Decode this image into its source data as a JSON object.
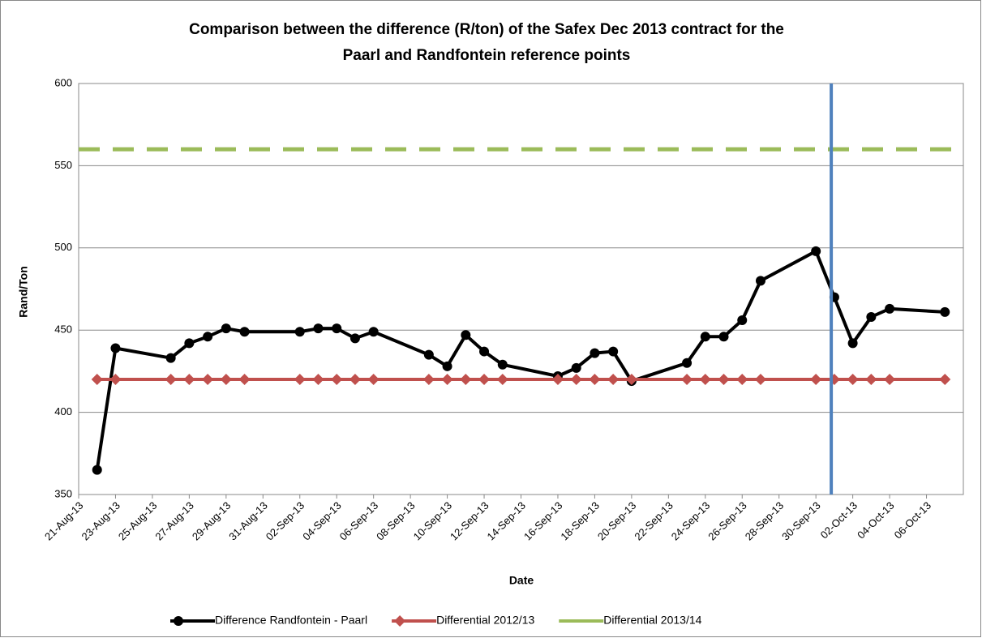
{
  "chart_data": {
    "type": "line",
    "title": [
      "Comparison  between the difference (R/ton) of the Safex Dec 2013 contract for the",
      "Paarl and Randfontein reference points"
    ],
    "xlabel": "Date",
    "ylabel": "Rand/Ton",
    "series": [
      {
        "name": "Difference Randfontein - Paarl",
        "color": "#000000",
        "marker": "circle",
        "x": [
          "2013-08-22",
          "2013-08-23",
          "2013-08-26",
          "2013-08-27",
          "2013-08-28",
          "2013-08-29",
          "2013-08-30",
          "2013-09-02",
          "2013-09-03",
          "2013-09-04",
          "2013-09-05",
          "2013-09-06",
          "2013-09-09",
          "2013-09-10",
          "2013-09-11",
          "2013-09-12",
          "2013-09-13",
          "2013-09-16",
          "2013-09-17",
          "2013-09-18",
          "2013-09-19",
          "2013-09-20",
          "2013-09-23",
          "2013-09-24",
          "2013-09-25",
          "2013-09-26",
          "2013-09-27",
          "2013-09-30",
          "2013-10-01",
          "2013-10-02",
          "2013-10-03",
          "2013-10-04",
          "2013-10-07"
        ],
        "values": [
          365,
          439,
          433,
          442,
          446,
          451,
          449,
          449,
          451,
          451,
          445,
          449,
          435,
          428,
          447,
          437,
          429,
          422,
          427,
          436,
          437,
          419,
          430,
          446,
          446,
          456,
          480,
          498,
          470,
          442,
          458,
          463,
          461
        ]
      },
      {
        "name": "Differential 2012/13",
        "color": "#c0504d",
        "marker": "diamond",
        "x": [
          "2013-08-22",
          "2013-08-23",
          "2013-08-26",
          "2013-08-27",
          "2013-08-28",
          "2013-08-29",
          "2013-08-30",
          "2013-09-02",
          "2013-09-03",
          "2013-09-04",
          "2013-09-05",
          "2013-09-06",
          "2013-09-09",
          "2013-09-10",
          "2013-09-11",
          "2013-09-12",
          "2013-09-13",
          "2013-09-16",
          "2013-09-17",
          "2013-09-18",
          "2013-09-19",
          "2013-09-20",
          "2013-09-23",
          "2013-09-24",
          "2013-09-25",
          "2013-09-26",
          "2013-09-27",
          "2013-09-30",
          "2013-10-01",
          "2013-10-02",
          "2013-10-03",
          "2013-10-04",
          "2013-10-07"
        ],
        "values": [
          420,
          420,
          420,
          420,
          420,
          420,
          420,
          420,
          420,
          420,
          420,
          420,
          420,
          420,
          420,
          420,
          420,
          420,
          420,
          420,
          420,
          420,
          420,
          420,
          420,
          420,
          420,
          420,
          420,
          420,
          420,
          420,
          420
        ]
      },
      {
        "name": "Differential 2013/14",
        "color": "#9bbb59",
        "dashed": true,
        "x": [
          "2013-08-21",
          "2013-10-08"
        ],
        "values": [
          560,
          560
        ]
      }
    ],
    "vline": {
      "x": "2013-09-30T20:00",
      "color": "#4f81bd"
    },
    "xlim": [
      "2013-08-21",
      "2013-10-08"
    ],
    "xticks": [
      {
        "value": "2013-08-21",
        "label": "21-Aug-13"
      },
      {
        "value": "2013-08-23",
        "label": "23-Aug-13"
      },
      {
        "value": "2013-08-25",
        "label": "25-Aug-13"
      },
      {
        "value": "2013-08-27",
        "label": "27-Aug-13"
      },
      {
        "value": "2013-08-29",
        "label": "29-Aug-13"
      },
      {
        "value": "2013-08-31",
        "label": "31-Aug-13"
      },
      {
        "value": "2013-09-02",
        "label": "02-Sep-13"
      },
      {
        "value": "2013-09-04",
        "label": "04-Sep-13"
      },
      {
        "value": "2013-09-06",
        "label": "06-Sep-13"
      },
      {
        "value": "2013-09-08",
        "label": "08-Sep-13"
      },
      {
        "value": "2013-09-10",
        "label": "10-Sep-13"
      },
      {
        "value": "2013-09-12",
        "label": "12-Sep-13"
      },
      {
        "value": "2013-09-14",
        "label": "14-Sep-13"
      },
      {
        "value": "2013-09-16",
        "label": "16-Sep-13"
      },
      {
        "value": "2013-09-18",
        "label": "18-Sep-13"
      },
      {
        "value": "2013-09-20",
        "label": "20-Sep-13"
      },
      {
        "value": "2013-09-22",
        "label": "22-Sep-13"
      },
      {
        "value": "2013-09-24",
        "label": "24-Sep-13"
      },
      {
        "value": "2013-09-26",
        "label": "26-Sep-13"
      },
      {
        "value": "2013-09-28",
        "label": "28-Sep-13"
      },
      {
        "value": "2013-09-30",
        "label": "30-Sep-13"
      },
      {
        "value": "2013-10-02",
        "label": "02-Oct-13"
      },
      {
        "value": "2013-10-04",
        "label": "04-Oct-13"
      },
      {
        "value": "2013-10-06",
        "label": "06-Oct-13"
      }
    ],
    "ylim": [
      350,
      600
    ],
    "yticks": [
      350,
      400,
      450,
      500,
      550,
      600
    ],
    "grid": true,
    "legend": "bottom"
  }
}
